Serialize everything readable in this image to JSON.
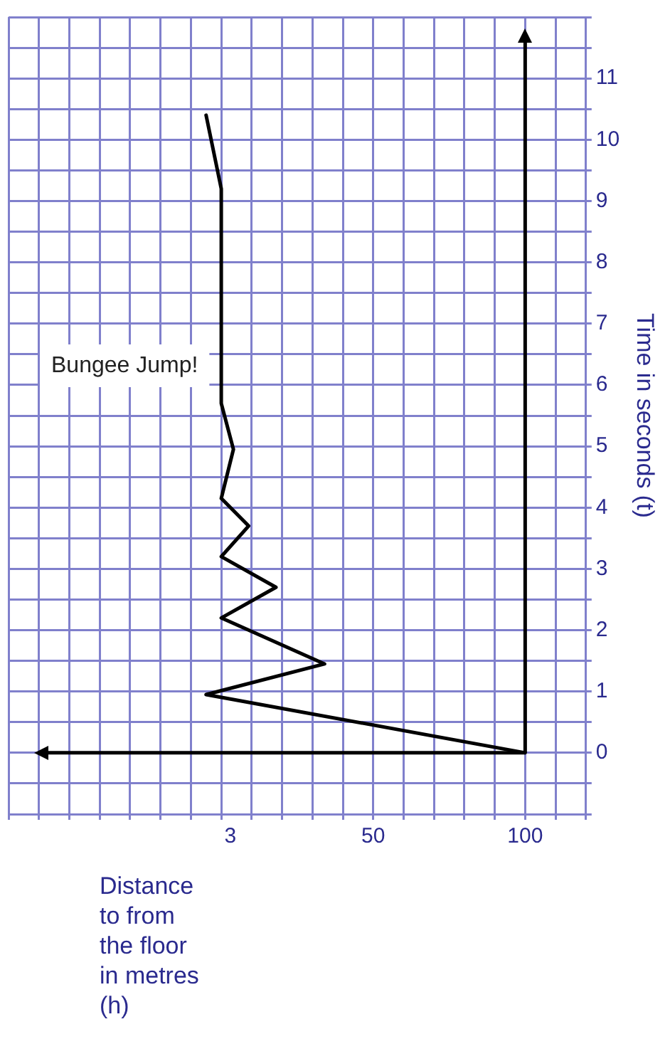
{
  "chart_data": {
    "type": "line",
    "title": "Bungee Jump!",
    "xlabel": "Distance\nto from\nthe floor\nin metres\n(h)",
    "ylabel": "Time in seconds (t)",
    "x": [
      100,
      -5,
      34,
      0,
      18,
      0,
      9,
      0,
      4,
      0,
      0,
      -5
    ],
    "series": [
      {
        "color": "#000000",
        "values": [
          0,
          0.95,
          1.45,
          2.2,
          2.7,
          3.2,
          3.7,
          4.15,
          4.95,
          5.7,
          9.2,
          10.4
        ]
      }
    ],
    "xlim": [
      -70,
      120
    ],
    "xticks": [
      {
        "value": -70,
        "label": null
      },
      {
        "value": -60,
        "label": null
      },
      {
        "value": -50,
        "label": null
      },
      {
        "value": -40,
        "label": null
      },
      {
        "value": -30,
        "label": null
      },
      {
        "value": -20,
        "label": null
      },
      {
        "value": -10,
        "label": null
      },
      {
        "value": 0,
        "label": null
      },
      3,
      {
        "value": 10,
        "label": null
      },
      {
        "value": 20,
        "label": null
      },
      {
        "value": 30,
        "label": null
      },
      {
        "value": 40,
        "label": null
      },
      50,
      {
        "value": 60,
        "label": null
      },
      {
        "value": 70,
        "label": null
      },
      {
        "value": 80,
        "label": null
      },
      {
        "value": 90,
        "label": null
      },
      100,
      {
        "value": 110,
        "label": null
      },
      {
        "value": 120,
        "label": null
      }
    ],
    "ylim": [
      -1,
      12
    ],
    "yticks": [
      {
        "value": -1,
        "label": null
      },
      {
        "value": -0.5,
        "label": null
      },
      0,
      {
        "value": 0.5,
        "label": null
      },
      1,
      {
        "value": 1.5,
        "label": null
      },
      2,
      {
        "value": 2.5,
        "label": null
      },
      3,
      {
        "value": 3.5,
        "label": null
      },
      4,
      {
        "value": 4.5,
        "label": null
      },
      5,
      {
        "value": 5.5,
        "label": null
      },
      6,
      {
        "value": 6.5,
        "label": null
      },
      7,
      {
        "value": 7.5,
        "label": null
      },
      8,
      {
        "value": 8.5,
        "label": null
      },
      9,
      {
        "value": 9.5,
        "label": null
      },
      10,
      {
        "value": 10.5,
        "label": null
      },
      11,
      {
        "value": 11.5,
        "label": null
      },
      {
        "value": 12,
        "label": null
      }
    ],
    "grid": true,
    "legend": false,
    "marker": "none",
    "line_style": "solid"
  }
}
